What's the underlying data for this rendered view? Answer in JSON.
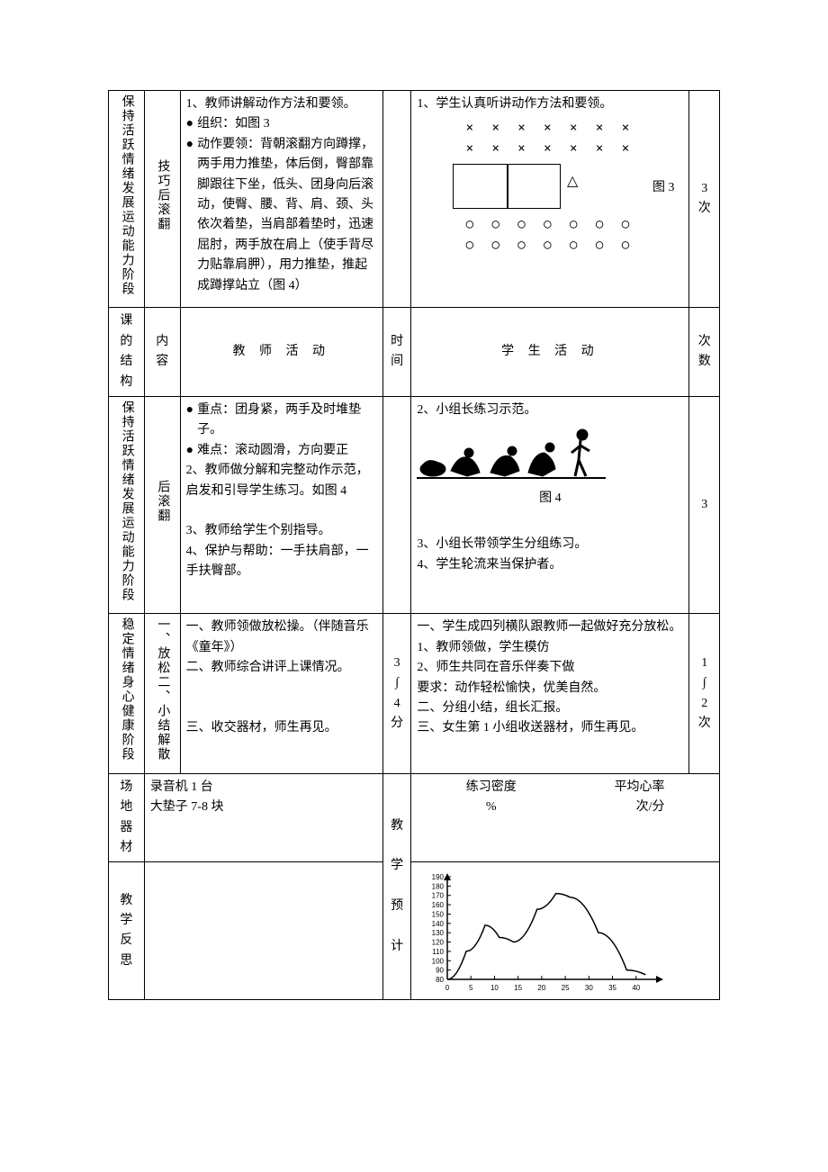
{
  "row1": {
    "structure": "保持活跃情绪发展运动能力阶段",
    "content": "技巧后滚翻",
    "teacher": {
      "line1": "1、教师讲解动作方法和要领。",
      "b1_label": "组织：如图 3",
      "b2_label": "动作要领：背朝滚翻方向蹲撑，两手用力推垫，体后倒，臀部靠脚跟往下坐，低头、团身向后滚动，使臀、腰、背、肩、颈、头依次着垫，当肩部着垫时，迅速屈肘，两手放在肩上（使手背尽力贴靠肩胛），用力推垫，推起成蹲撑站立（图 4）"
    },
    "student": {
      "line1": "1、学生认真听讲动作方法和要领。",
      "xrow": "× × × × × × ×",
      "fig3_label": "图 3",
      "orow": "○ ○ ○ ○ ○ ○ ○"
    },
    "count": "3\n次"
  },
  "header": {
    "structure": "课的结构",
    "content": "内容",
    "teacher": "教  师  活  动",
    "time": "时间",
    "student": "学  生  活  动",
    "count": "次数"
  },
  "row2": {
    "structure": "保持活跃情绪发展运动能力阶段",
    "content": "后滚翻",
    "teacher": {
      "b1_label": "重点：团身紧，两手及时堆垫子。",
      "b2_label": "难点：滚动圆滑，方向要正",
      "line2": "2、教师做分解和完整动作示范，启发和引导学生练习。如图 4",
      "line3": "3、教师给学生个别指导。",
      "line4": "4、保护与帮助：一手扶肩部，一手扶臀部。"
    },
    "student": {
      "line2": "2、小组长练习示范。",
      "fig4_label": "图 4",
      "line3": "3、小组长带领学生分组练习。",
      "line4": "4、学生轮流来当保护者。"
    },
    "count": "3"
  },
  "row3": {
    "structure": "稳定情绪身心健康阶段",
    "content": "一、放松二、小结解散",
    "teacher": {
      "line1": "一、教师领做放松操。（伴随音乐《童年》）",
      "line2": "二、教师综合讲评上课情况。",
      "line3": "三、收交器材，师生再见。"
    },
    "time": "3\n∫\n4\n分",
    "student": {
      "line1": "一、学生成四列横队跟教师一起做好充分放松。",
      "l1": "1、教师领做，学生模仿",
      "l2": "2、师生共同在音乐伴奏下做",
      "req": "要求：动作轻松愉快，优美自然。",
      "line2": "二、分组小结，组长汇报。",
      "line3": "三、女生第 1 小组收送器材，师生再见。"
    },
    "count": "1\n∫\n2\n次"
  },
  "row4": {
    "structure": "场地器材",
    "content": {
      "line1": "录音机 1 台",
      "line2": "大垫子 7-8 块"
    },
    "predict_label": "教\n\n学\n\n预\n\n计",
    "density_label": "练习密度",
    "density_unit": "%",
    "hr_label": "平均心率",
    "hr_unit": "次/分"
  },
  "row5": {
    "structure": "教学反思"
  },
  "chart": {
    "y_ticks": [
      "190",
      "180",
      "170",
      "160",
      "150",
      "140",
      "130",
      "120",
      "110",
      "100",
      "90",
      "80"
    ],
    "x_ticks": [
      "0",
      "5",
      "10",
      "15",
      "20",
      "25",
      "30",
      "35",
      "40"
    ],
    "points": [
      [
        0,
        80
      ],
      [
        4,
        110
      ],
      [
        8,
        138
      ],
      [
        11,
        125
      ],
      [
        14,
        120
      ],
      [
        19,
        155
      ],
      [
        23,
        172
      ],
      [
        26,
        168
      ],
      [
        32,
        130
      ],
      [
        38,
        90
      ],
      [
        42,
        85
      ]
    ],
    "axis_color": "#000000",
    "line_color": "#000000",
    "font_size": 8
  }
}
